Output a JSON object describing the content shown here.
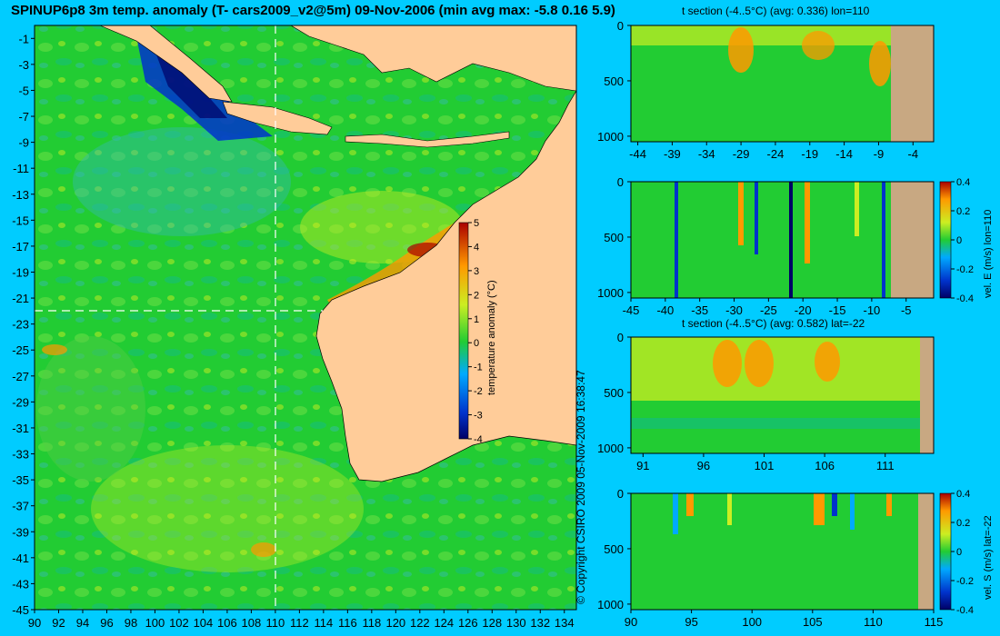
{
  "header": {
    "title": "SPINUP6p8 3m temp. anomaly (T- cars2009_v2@5m) 09-Nov-2006 (min avg max: -5.8 0.16 5.9)"
  },
  "copyright": "© Copyright CSIRO 2009   05-Nov-2009 16:38:47",
  "colors": {
    "background": "#00ccff",
    "land": "#ffcc99",
    "section_land": "#c8a882",
    "ocean_base": "#22cc33",
    "colormap": [
      "#000066",
      "#0033cc",
      "#00aaff",
      "#22cc33",
      "#ccee22",
      "#ff9900",
      "#aa0000"
    ]
  },
  "chart_data": [
    {
      "id": "map",
      "type": "heatmap",
      "title": "SPINUP6p8 3m temp. anomaly (T- cars2009_v2@5m) 09-Nov-2006 (min avg max: -5.8 0.16 5.9)",
      "x_ticks": [
        "90",
        "92",
        "94",
        "96",
        "98",
        "100",
        "102",
        "104",
        "106",
        "108",
        "110",
        "112",
        "114",
        "116",
        "118",
        "120",
        "122",
        "124",
        "126",
        "128",
        "130",
        "132",
        "134"
      ],
      "y_ticks": [
        "-1",
        "-3",
        "-5",
        "-7",
        "-9",
        "-11",
        "-13",
        "-15",
        "-17",
        "-19",
        "-21",
        "-23",
        "-25",
        "-27",
        "-29",
        "-31",
        "-33",
        "-35",
        "-37",
        "-39",
        "-41",
        "-43",
        "-45"
      ],
      "xlim": [
        90,
        135
      ],
      "ylim": [
        -45,
        0
      ],
      "section_lon": 110,
      "section_lat": -22,
      "colorbar": {
        "label": "temperature anomaly (°C)",
        "ticks": [
          "5",
          "4",
          "3",
          "2",
          "1",
          "0",
          "-1",
          "-2",
          "-3",
          "-4"
        ],
        "range": [
          -4,
          5
        ]
      },
      "stats": {
        "min": -5.8,
        "avg": 0.16,
        "max": 5.9
      }
    },
    {
      "id": "t_section_lon",
      "type": "heatmap",
      "title": "t section (-4..5°C) (avg: 0.336) lon=110",
      "x_ticks": [
        "-44",
        "-39",
        "-34",
        "-29",
        "-24",
        "-19",
        "-14",
        "-9",
        "-4"
      ],
      "y_ticks": [
        "0",
        "500",
        "1000"
      ],
      "xlim": [
        -45,
        -1
      ],
      "ylim": [
        1050,
        0
      ]
    },
    {
      "id": "vel_e_section",
      "type": "heatmap",
      "title": "",
      "x_ticks": [
        "-45",
        "-40",
        "-35",
        "-30",
        "-25",
        "-20",
        "-15",
        "-10",
        "-5"
      ],
      "y_ticks": [
        "0",
        "500",
        "1000"
      ],
      "xlim": [
        -45,
        -1
      ],
      "ylim": [
        1050,
        0
      ],
      "colorbar": {
        "label": "vel. E (m/s) lon=110",
        "ticks": [
          "0.4",
          "0.2",
          "0",
          "-0.2",
          "-0.4"
        ],
        "range": [
          -0.4,
          0.4
        ]
      }
    },
    {
      "id": "t_section_lat",
      "type": "heatmap",
      "title": "t section (-4..5°C) (avg: 0.582) lat=-22",
      "x_ticks": [
        "91",
        "96",
        "101",
        "106",
        "111"
      ],
      "y_ticks": [
        "0",
        "500",
        "1000"
      ],
      "xlim": [
        90,
        115
      ],
      "ylim": [
        1050,
        0
      ]
    },
    {
      "id": "vel_s_section",
      "type": "heatmap",
      "title": "",
      "x_ticks": [
        "90",
        "95",
        "100",
        "105",
        "110",
        "115"
      ],
      "y_ticks": [
        "0",
        "500",
        "1000"
      ],
      "xlim": [
        90,
        115
      ],
      "ylim": [
        1050,
        0
      ],
      "colorbar": {
        "label": "vel. S (m/s) lat=-22",
        "ticks": [
          "0.4",
          "0.2",
          "0",
          "-0.2",
          "-0.4"
        ],
        "range": [
          -0.4,
          0.4
        ]
      }
    }
  ]
}
